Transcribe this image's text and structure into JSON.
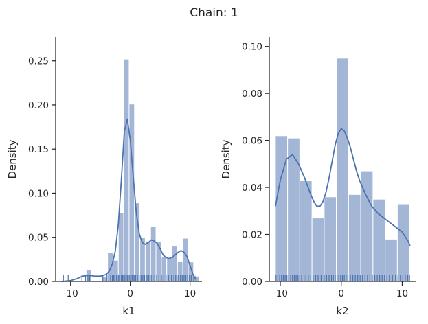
{
  "chart_data": {
    "suptitle": "Chain: 1",
    "style": {
      "hist_color": "#a3b6d6",
      "line_color": "#4c72b0",
      "rug_color": "#4c72b0",
      "axis_color": "#262626"
    },
    "panels": [
      {
        "type": "histogram-kde-rug",
        "xlabel": "k1",
        "ylabel": "Density",
        "xlim": [
          -12.5,
          12
        ],
        "ylim": [
          0,
          0.277
        ],
        "xticks": [
          -10,
          0,
          10
        ],
        "yticks": [
          0.0,
          0.05,
          0.1,
          0.15,
          0.2,
          0.25
        ],
        "ytick_labels": [
          "0.00",
          "0.05",
          "0.10",
          "0.15",
          "0.20",
          "0.25"
        ],
        "bins": [
          {
            "x0": -11.0,
            "x1": -10.1,
            "density": 0.0
          },
          {
            "x0": -10.1,
            "x1": -9.2,
            "density": 0.0
          },
          {
            "x0": -9.2,
            "x1": -8.3,
            "density": 0.0
          },
          {
            "x0": -8.3,
            "x1": -7.4,
            "density": 0.0
          },
          {
            "x0": -7.4,
            "x1": -6.5,
            "density": 0.013
          },
          {
            "x0": -6.5,
            "x1": -5.6,
            "density": 0.0
          },
          {
            "x0": -5.6,
            "x1": -4.7,
            "density": 0.0
          },
          {
            "x0": -4.7,
            "x1": -3.8,
            "density": 0.005
          },
          {
            "x0": -3.8,
            "x1": -2.9,
            "density": 0.033
          },
          {
            "x0": -2.9,
            "x1": -2.0,
            "density": 0.024
          },
          {
            "x0": -2.0,
            "x1": -1.1,
            "density": 0.078
          },
          {
            "x0": -1.1,
            "x1": -0.2,
            "density": 0.252
          },
          {
            "x0": -0.2,
            "x1": 0.7,
            "density": 0.201
          },
          {
            "x0": 0.7,
            "x1": 1.6,
            "density": 0.089
          },
          {
            "x0": 1.6,
            "x1": 2.5,
            "density": 0.05
          },
          {
            "x0": 2.5,
            "x1": 3.4,
            "density": 0.045
          },
          {
            "x0": 3.4,
            "x1": 4.3,
            "density": 0.062
          },
          {
            "x0": 4.3,
            "x1": 5.2,
            "density": 0.045
          },
          {
            "x0": 5.2,
            "x1": 6.1,
            "density": 0.028
          },
          {
            "x0": 6.1,
            "x1": 7.0,
            "density": 0.026
          },
          {
            "x0": 7.0,
            "x1": 7.9,
            "density": 0.04
          },
          {
            "x0": 7.9,
            "x1": 8.8,
            "density": 0.023
          },
          {
            "x0": 8.8,
            "x1": 9.7,
            "density": 0.049
          },
          {
            "x0": 9.7,
            "x1": 10.6,
            "density": 0.022
          },
          {
            "x0": 10.6,
            "x1": 11.5,
            "density": 0.006
          }
        ],
        "kde": {
          "x": [
            -11.5,
            -10,
            -9,
            -8,
            -7,
            -6,
            -5,
            -4,
            -3.5,
            -3,
            -2.5,
            -2,
            -1.5,
            -1,
            -0.5,
            0,
            0.5,
            1,
            1.5,
            2,
            2.5,
            3,
            3.5,
            4,
            4.5,
            5,
            5.5,
            6,
            6.5,
            7,
            7.5,
            8,
            8.5,
            9,
            9.5,
            10,
            10.5,
            11
          ],
          "y": [
            0.0,
            0.001,
            0.003,
            0.006,
            0.007,
            0.006,
            0.006,
            0.008,
            0.012,
            0.02,
            0.035,
            0.065,
            0.115,
            0.17,
            0.184,
            0.16,
            0.118,
            0.078,
            0.054,
            0.044,
            0.042,
            0.044,
            0.047,
            0.046,
            0.043,
            0.037,
            0.03,
            0.027,
            0.026,
            0.027,
            0.03,
            0.033,
            0.035,
            0.033,
            0.028,
            0.018,
            0.008,
            0.002
          ]
        },
        "rug": [
          -11.2,
          -10.4,
          -8.1,
          -7.5,
          -7.1,
          -6.8,
          -4.6,
          -3.9,
          -3.6,
          -3.3,
          -3.0,
          -2.8,
          -2.6,
          -2.3,
          -2.0,
          -1.8,
          -1.5,
          -1.3,
          -1.1,
          -0.9,
          -0.7,
          -0.5,
          -0.3,
          -0.1,
          0.1,
          0.3,
          0.5,
          0.7,
          0.9,
          1.2,
          1.5,
          1.8,
          2.1,
          2.4,
          2.8,
          3.1,
          3.5,
          3.8,
          4.1,
          4.4,
          4.8,
          5.2,
          5.6,
          6.0,
          6.4,
          6.9,
          7.3,
          7.6,
          8.0,
          8.4,
          8.7,
          9.0,
          9.3,
          9.6,
          9.9,
          10.2,
          10.6,
          11.0
        ]
      },
      {
        "type": "histogram-kde-rug",
        "xlabel": "k2",
        "ylabel": "Density",
        "xlim": [
          -11.8,
          12.2
        ],
        "ylim": [
          0,
          0.104
        ],
        "xticks": [
          -10,
          0,
          10
        ],
        "yticks": [
          0.0,
          0.02,
          0.04,
          0.06,
          0.08,
          0.1
        ],
        "ytick_labels": [
          "0.00",
          "0.02",
          "0.04",
          "0.06",
          "0.08",
          "0.10"
        ],
        "bins": [
          {
            "x0": -10.8,
            "x1": -8.8,
            "density": 0.062
          },
          {
            "x0": -8.8,
            "x1": -6.8,
            "density": 0.061
          },
          {
            "x0": -6.8,
            "x1": -4.8,
            "density": 0.043
          },
          {
            "x0": -4.8,
            "x1": -2.8,
            "density": 0.027
          },
          {
            "x0": -2.8,
            "x1": -0.8,
            "density": 0.036
          },
          {
            "x0": -0.8,
            "x1": 1.2,
            "density": 0.095
          },
          {
            "x0": 1.2,
            "x1": 3.2,
            "density": 0.037
          },
          {
            "x0": 3.2,
            "x1": 5.2,
            "density": 0.047
          },
          {
            "x0": 5.2,
            "x1": 7.2,
            "density": 0.035
          },
          {
            "x0": 7.2,
            "x1": 9.2,
            "density": 0.018
          },
          {
            "x0": 9.2,
            "x1": 11.2,
            "density": 0.033
          }
        ],
        "kde": {
          "x": [
            -10.8,
            -10,
            -9,
            -8,
            -7,
            -6,
            -5,
            -4.5,
            -4,
            -3.5,
            -3,
            -2.5,
            -2,
            -1.5,
            -1,
            -0.5,
            0,
            0.5,
            1,
            1.5,
            2,
            2.5,
            3,
            4,
            5,
            6,
            7,
            8,
            9,
            10,
            11,
            11.3
          ],
          "y": [
            0.032,
            0.043,
            0.052,
            0.054,
            0.05,
            0.044,
            0.037,
            0.034,
            0.032,
            0.032,
            0.034,
            0.038,
            0.044,
            0.051,
            0.058,
            0.063,
            0.065,
            0.064,
            0.061,
            0.057,
            0.052,
            0.047,
            0.043,
            0.037,
            0.032,
            0.029,
            0.027,
            0.025,
            0.023,
            0.021,
            0.017,
            0.015
          ]
        },
        "rug": [
          -10.7,
          -10.4,
          -10.1,
          -9.8,
          -9.5,
          -9.2,
          -8.9,
          -8.6,
          -8.3,
          -8.0,
          -7.7,
          -7.4,
          -7.1,
          -6.8,
          -6.5,
          -6.1,
          -5.8,
          -5.4,
          -5.0,
          -4.6,
          -4.2,
          -3.8,
          -3.3,
          -2.8,
          -2.4,
          -2.0,
          -1.6,
          -1.3,
          -1.0,
          -0.7,
          -0.4,
          -0.1,
          0.2,
          0.5,
          0.8,
          1.1,
          1.5,
          1.9,
          2.3,
          2.7,
          3.1,
          3.5,
          3.9,
          4.3,
          4.7,
          5.1,
          5.5,
          5.9,
          6.3,
          6.7,
          7.1,
          7.5,
          7.9,
          8.4,
          8.9,
          9.3,
          9.7,
          10.1,
          10.5,
          10.9,
          11.2
        ]
      }
    ]
  }
}
